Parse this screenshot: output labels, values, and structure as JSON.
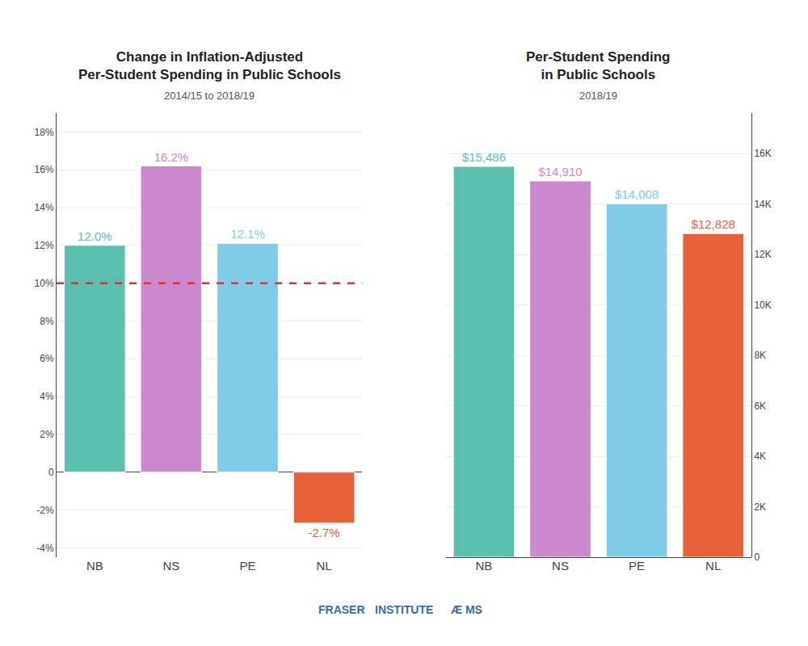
{
  "chart_data": [
    {
      "type": "bar",
      "title": "Change in Inflation-Adjusted\nPer-Student Spending in Public Schools",
      "subtitle": "2014/15 to 2018/19",
      "categories": [
        "NB",
        "NS",
        "PE",
        "NL"
      ],
      "values": [
        12.0,
        16.2,
        12.1,
        -2.7
      ],
      "value_labels": [
        "12.0%",
        "16.2%",
        "12.1%",
        "-2.7%"
      ],
      "data_labels": true,
      "colors": [
        "#5bbfb0",
        "#cc88cc",
        "#7ecce8",
        "#e8613a"
      ],
      "ylim": [
        -4.5,
        19
      ],
      "yticks": [
        {
          "value": -4,
          "label": "-4%"
        },
        {
          "value": -2,
          "label": "-2%"
        },
        0,
        {
          "value": 2,
          "label": "2%"
        },
        {
          "value": 4,
          "label": "4%"
        },
        {
          "value": 6,
          "label": "6%"
        },
        {
          "value": 8,
          "label": "8%"
        },
        {
          "value": 10,
          "label": "10%"
        },
        {
          "value": 12,
          "label": "12%"
        },
        {
          "value": 14,
          "label": "14%"
        },
        {
          "value": 16,
          "label": "16%"
        },
        {
          "value": 18,
          "label": "18%"
        }
      ],
      "grid": true,
      "reference_line": {
        "value": 10.0,
        "color": "#e03030"
      }
    },
    {
      "type": "bar",
      "title": "Per-Student Spending\nin Public Schools",
      "subtitle": "2018/19",
      "categories": [
        "NB",
        "NS",
        "PE",
        "NL"
      ],
      "values": [
        15486,
        14910,
        14008,
        12828
      ],
      "value_labels": [
        "$15,486",
        "$14,910",
        "$14,008",
        "$12,828"
      ],
      "data_labels": true,
      "colors": [
        "#5bbfb0",
        "#cc88cc",
        "#7ecce8",
        "#e8613a"
      ],
      "ylim": [
        0,
        17600
      ],
      "yticks": [
        0,
        {
          "value": 2000,
          "label": "2K"
        },
        {
          "value": 4000,
          "label": "4K"
        },
        {
          "value": 6000,
          "label": "6K"
        },
        {
          "value": 8000,
          "label": "8K"
        },
        {
          "value": 10000,
          "label": "10K"
        },
        {
          "value": 12000,
          "label": "12K"
        },
        {
          "value": 14000,
          "label": "14K"
        },
        {
          "value": 16000,
          "label": "16K"
        }
      ],
      "grid": true,
      "annotations": [
        "FRASER",
        "INSTITUTE",
        "Æ MS"
      ]
    }
  ]
}
